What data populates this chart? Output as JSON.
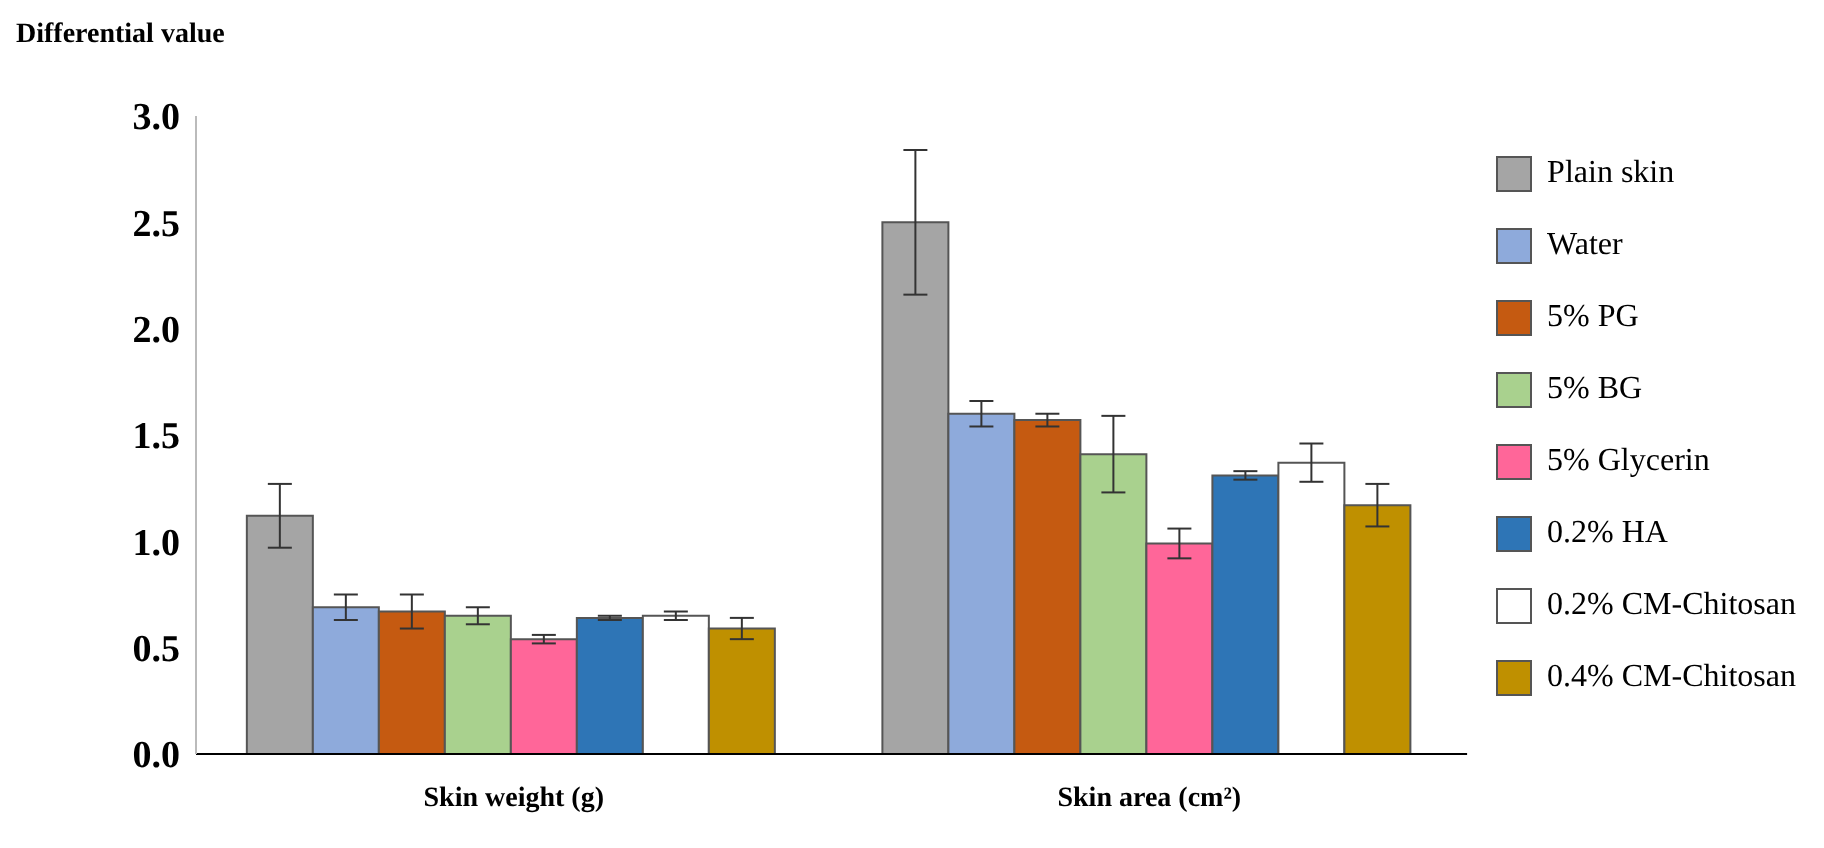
{
  "chart_data": {
    "type": "bar",
    "ylabel": "Differential value",
    "categories": [
      "Skin weight (g)",
      "Skin area (cm²)"
    ],
    "series": [
      {
        "name": "Plain skin",
        "color": "#a5a5a5",
        "values": [
          1.12,
          2.5
        ],
        "errors": [
          0.15,
          0.34
        ]
      },
      {
        "name": "Water",
        "color": "#8eaadb",
        "values": [
          0.69,
          1.6
        ],
        "errors": [
          0.06,
          0.06
        ]
      },
      {
        "name": "5% PG",
        "color": "#c55a11",
        "values": [
          0.67,
          1.57
        ],
        "errors": [
          0.08,
          0.03
        ]
      },
      {
        "name": "5% BG",
        "color": "#a9d18e",
        "values": [
          0.65,
          1.41
        ],
        "errors": [
          0.04,
          0.18
        ]
      },
      {
        "name": "5% Glycerin",
        "color": "#ff6699",
        "values": [
          0.54,
          0.99
        ],
        "errors": [
          0.02,
          0.07
        ]
      },
      {
        "name": "0.2% HA",
        "color": "#2e75b6",
        "values": [
          0.64,
          1.31
        ],
        "errors": [
          0.01,
          0.02
        ]
      },
      {
        "name": "0.2% CM-Chitosan",
        "color": "#ffffff",
        "values": [
          0.65,
          1.37
        ],
        "errors": [
          0.02,
          0.09
        ]
      },
      {
        "name": "0.4% CM-Chitosan",
        "color": "#bf9000",
        "values": [
          0.59,
          1.17
        ],
        "errors": [
          0.05,
          0.1
        ]
      }
    ],
    "ylim": [
      0,
      3
    ],
    "yticks": [
      {
        "value": 0,
        "label": "0.0"
      },
      {
        "value": 0.5,
        "label": "0.5"
      },
      {
        "value": 1,
        "label": "1.0"
      },
      {
        "value": 1.5,
        "label": "1.5"
      },
      {
        "value": 2,
        "label": "2.0"
      },
      {
        "value": 2.5,
        "label": "2.5"
      },
      {
        "value": 3,
        "label": "3.0"
      }
    ],
    "legend": "right",
    "grid": false
  }
}
